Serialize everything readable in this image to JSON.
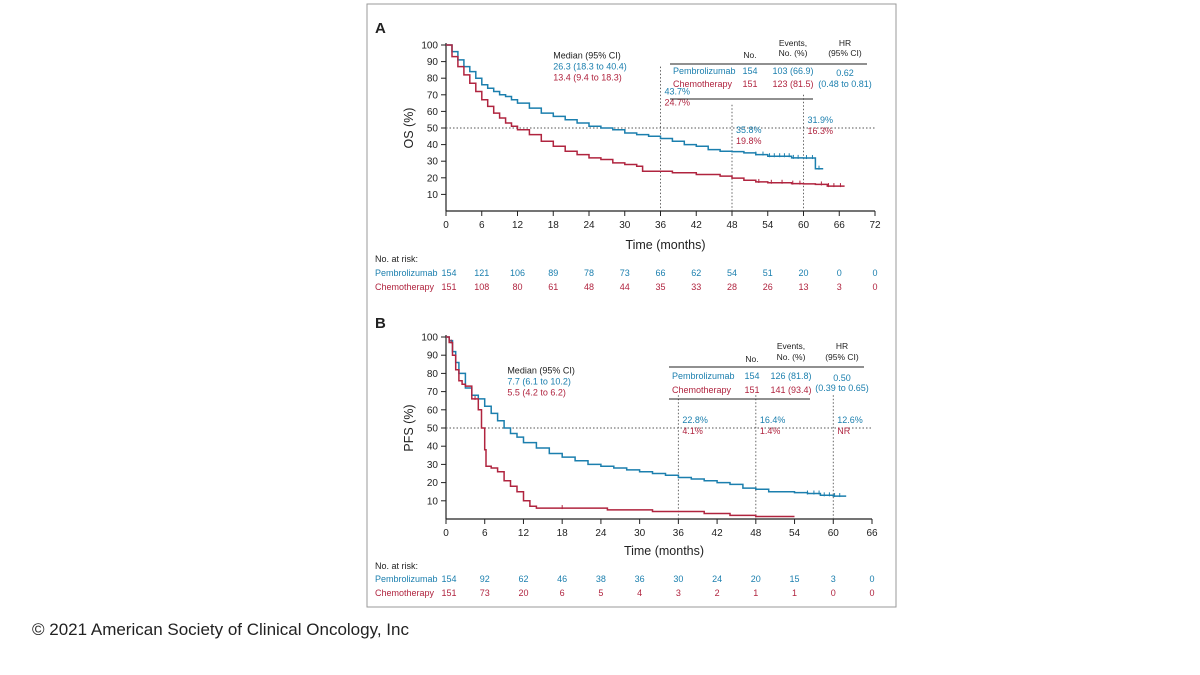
{
  "colors": {
    "pembrolizumab": "#1b7fae",
    "chemotherapy": "#b0243f",
    "axis": "#222222",
    "frame": "#9a9a9a",
    "background": "#ffffff"
  },
  "footer": {
    "copyright": "© 2021 American Society of Clinical Oncology, Inc"
  },
  "chart_data": [
    {
      "type": "line",
      "panel_label": "A",
      "xlabel": "Time (months)",
      "ylabel": "OS (%)",
      "xlim": [
        0,
        72
      ],
      "ylim": [
        0,
        100
      ],
      "xticks": [
        0,
        6,
        12,
        18,
        24,
        30,
        36,
        42,
        48,
        54,
        60,
        66,
        72
      ],
      "yticks": [
        10,
        20,
        30,
        40,
        50,
        60,
        70,
        80,
        90,
        100
      ],
      "reference_y": 50,
      "landmarks": [
        {
          "x": 36,
          "top": 87,
          "pembro": "43.7%",
          "chemo": "24.7%"
        },
        {
          "x": 48,
          "top": 64,
          "pembro": "35.8%",
          "chemo": "19.8%"
        },
        {
          "x": 60,
          "top": 70,
          "pembro": "31.9%",
          "chemo": "16.3%"
        }
      ],
      "median": {
        "title": "Median (95% CI)",
        "pembro": "26.3 (18.3 to 40.4)",
        "chemo": "13.4 (9.4 to 18.3)",
        "x": 18,
        "y": 92
      },
      "table": {
        "headers": [
          "No.",
          "Events,\nNo. (%)",
          "HR\n(95% CI)"
        ],
        "rows": [
          {
            "arm": "Pembrolizumab",
            "n": "154",
            "events": "103 (66.9)"
          },
          {
            "arm": "Chemotherapy",
            "n": "151",
            "events": "123 (81.5)"
          }
        ],
        "hr": "0.62",
        "ci": "(0.48 to 0.81)"
      },
      "at_risk": {
        "title": "No. at risk:",
        "times": [
          0,
          6,
          12,
          18,
          24,
          30,
          36,
          42,
          48,
          54,
          60,
          66,
          72
        ],
        "rows": [
          {
            "arm": "Pembrolizumab",
            "values": [
              154,
              121,
              106,
              89,
              78,
              73,
              66,
              62,
              54,
              51,
              20,
              0,
              0
            ]
          },
          {
            "arm": "Chemotherapy",
            "values": [
              151,
              108,
              80,
              61,
              48,
              44,
              35,
              33,
              28,
              26,
              13,
              3,
              0
            ]
          }
        ]
      },
      "series": [
        {
          "name": "Pembrolizumab",
          "end": 63.3,
          "points": [
            [
              0,
              100
            ],
            [
              1,
              96
            ],
            [
              2,
              91
            ],
            [
              3,
              87
            ],
            [
              4,
              84
            ],
            [
              5,
              80
            ],
            [
              6,
              76
            ],
            [
              7,
              74
            ],
            [
              8,
              72
            ],
            [
              9,
              70
            ],
            [
              10,
              69
            ],
            [
              11,
              67
            ],
            [
              12,
              65
            ],
            [
              14,
              62
            ],
            [
              16,
              59
            ],
            [
              18,
              57
            ],
            [
              20,
              55
            ],
            [
              22,
              53
            ],
            [
              24,
              51
            ],
            [
              26,
              50
            ],
            [
              28,
              49
            ],
            [
              30,
              47
            ],
            [
              32,
              46
            ],
            [
              34,
              45
            ],
            [
              36,
              43.7
            ],
            [
              38,
              42
            ],
            [
              40,
              40
            ],
            [
              42,
              39
            ],
            [
              44,
              37
            ],
            [
              46,
              36
            ],
            [
              48,
              35.8
            ],
            [
              50,
              35
            ],
            [
              52,
              34
            ],
            [
              54,
              33
            ],
            [
              56,
              33
            ],
            [
              58,
              32
            ],
            [
              60,
              31.9
            ],
            [
              61,
              31.9
            ],
            [
              62,
              25.5
            ],
            [
              63.3,
              25.5
            ]
          ],
          "censors": [
            52,
            53.2,
            54.3,
            55.1,
            56,
            56.8,
            57.6,
            58.3,
            59.1,
            60.5,
            61.5,
            62.6
          ]
        },
        {
          "name": "Chemotherapy",
          "end": 66.9,
          "points": [
            [
              0,
              100
            ],
            [
              1,
              93
            ],
            [
              2,
              87
            ],
            [
              3,
              82
            ],
            [
              4,
              77
            ],
            [
              5,
              72
            ],
            [
              6,
              67
            ],
            [
              7,
              63
            ],
            [
              8,
              59
            ],
            [
              9,
              56
            ],
            [
              10,
              53
            ],
            [
              11,
              51
            ],
            [
              12,
              49
            ],
            [
              14,
              46
            ],
            [
              16,
              42
            ],
            [
              18,
              39
            ],
            [
              20,
              36
            ],
            [
              22,
              34
            ],
            [
              24,
              32
            ],
            [
              26,
              31
            ],
            [
              28,
              29
            ],
            [
              30,
              28
            ],
            [
              32,
              27
            ],
            [
              33,
              24
            ],
            [
              36,
              24
            ],
            [
              38,
              23
            ],
            [
              42,
              22
            ],
            [
              46,
              21
            ],
            [
              48,
              19.8
            ],
            [
              50,
              18.5
            ],
            [
              52,
              17.5
            ],
            [
              54,
              17
            ],
            [
              56,
              17
            ],
            [
              58,
              16.5
            ],
            [
              60,
              16.3
            ],
            [
              62,
              16
            ],
            [
              64,
              15
            ],
            [
              66.9,
              15
            ]
          ],
          "censors": [
            52.5,
            54.6,
            56.4,
            58.2,
            59.4,
            63,
            64.2,
            65.1,
            66.2
          ]
        }
      ]
    },
    {
      "type": "line",
      "panel_label": "B",
      "xlabel": "Time (months)",
      "ylabel": "PFS (%)",
      "xlim": [
        0,
        66
      ],
      "ylim": [
        0,
        100
      ],
      "xticks": [
        0,
        6,
        12,
        18,
        24,
        30,
        36,
        42,
        48,
        54,
        60,
        66
      ],
      "yticks": [
        10,
        20,
        30,
        40,
        50,
        60,
        70,
        80,
        90,
        100
      ],
      "reference_y": 50,
      "landmarks": [
        {
          "x": 36,
          "top": 68,
          "pembro": "22.8%",
          "chemo": "4.1%"
        },
        {
          "x": 48,
          "top": 68,
          "pembro": "16.4%",
          "chemo": "1.4%"
        },
        {
          "x": 60,
          "top": 68,
          "pembro": "12.6%",
          "chemo": "NR"
        }
      ],
      "median": {
        "title": "Median (95% CI)",
        "pembro": "7.7 (6.1 to 10.2)",
        "chemo": "5.5 (4.2 to 6.2)",
        "x": 9.5,
        "y": 80
      },
      "table": {
        "headers": [
          "No.",
          "Events,\nNo. (%)",
          "HR\n(95% CI)"
        ],
        "rows": [
          {
            "arm": "Pembrolizumab",
            "n": "154",
            "events": "126 (81.8)"
          },
          {
            "arm": "Chemotherapy",
            "n": "151",
            "events": "141 (93.4)"
          }
        ],
        "hr": "0.50",
        "ci": "(0.39 to 0.65)"
      },
      "at_risk": {
        "title": "No. at risk:",
        "times": [
          0,
          6,
          12,
          18,
          24,
          30,
          36,
          42,
          48,
          54,
          60,
          66
        ],
        "rows": [
          {
            "arm": "Pembrolizumab",
            "values": [
              154,
              92,
              62,
              46,
              38,
              36,
              30,
              24,
              20,
              15,
              3,
              0
            ]
          },
          {
            "arm": "Chemotherapy",
            "values": [
              151,
              73,
              20,
              6,
              5,
              4,
              3,
              2,
              1,
              1,
              0,
              0
            ]
          }
        ]
      },
      "series": [
        {
          "name": "Pembrolizumab",
          "end": 62,
          "points": [
            [
              0,
              100
            ],
            [
              0.5,
              98
            ],
            [
              1,
              92
            ],
            [
              1.5,
              86
            ],
            [
              2,
              80
            ],
            [
              3,
              72
            ],
            [
              4,
              68
            ],
            [
              5,
              66
            ],
            [
              6,
              62
            ],
            [
              7,
              58
            ],
            [
              8,
              54
            ],
            [
              9,
              50
            ],
            [
              10,
              47
            ],
            [
              11,
              45
            ],
            [
              12,
              42
            ],
            [
              14,
              39
            ],
            [
              16,
              36
            ],
            [
              18,
              34
            ],
            [
              20,
              32
            ],
            [
              22,
              30
            ],
            [
              24,
              29
            ],
            [
              26,
              28
            ],
            [
              28,
              27
            ],
            [
              30,
              26
            ],
            [
              32,
              25
            ],
            [
              34,
              24
            ],
            [
              36,
              22.8
            ],
            [
              38,
              22
            ],
            [
              40,
              21
            ],
            [
              42,
              20
            ],
            [
              44,
              19
            ],
            [
              46,
              17
            ],
            [
              48,
              16.4
            ],
            [
              50,
              15
            ],
            [
              52,
              15
            ],
            [
              54,
              14.5
            ],
            [
              56,
              14
            ],
            [
              58,
              13
            ],
            [
              60,
              12.6
            ],
            [
              62,
              12.6
            ]
          ],
          "censors": [
            1,
            56,
            57,
            57.8,
            58.6,
            59.4,
            60.2,
            61
          ]
        },
        {
          "name": "Chemotherapy",
          "end": 54,
          "points": [
            [
              0,
              100
            ],
            [
              0.5,
              97
            ],
            [
              1,
              90
            ],
            [
              1.5,
              82
            ],
            [
              2,
              76
            ],
            [
              2.5,
              74
            ],
            [
              3,
              73
            ],
            [
              4,
              66
            ],
            [
              5,
              60
            ],
            [
              5.5,
              50
            ],
            [
              6,
              38
            ],
            [
              6.2,
              29
            ],
            [
              7,
              28
            ],
            [
              8,
              26
            ],
            [
              9,
              21
            ],
            [
              10,
              18
            ],
            [
              11,
              15
            ],
            [
              12,
              10
            ],
            [
              13,
              7
            ],
            [
              14,
              6
            ],
            [
              16,
              6
            ],
            [
              18,
              6
            ],
            [
              20,
              6
            ],
            [
              24,
              6
            ],
            [
              25,
              5
            ],
            [
              30,
              5
            ],
            [
              32,
              4.1
            ],
            [
              36,
              4.1
            ],
            [
              40,
              3
            ],
            [
              44,
              2
            ],
            [
              48,
              1.4
            ],
            [
              54,
              1.4
            ]
          ],
          "censors": [
            0.8,
            4.5,
            18
          ]
        }
      ]
    }
  ]
}
